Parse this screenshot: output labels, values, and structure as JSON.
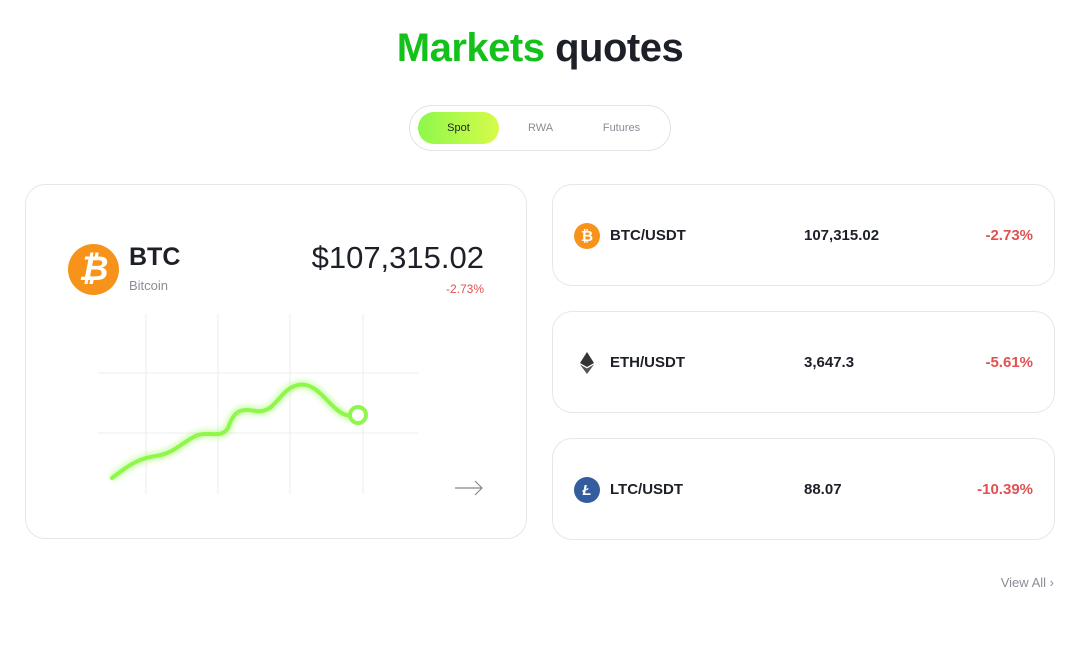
{
  "header": {
    "title_accent": "Markets",
    "title_rest": "quotes"
  },
  "tabs": [
    {
      "label": "Spot",
      "active": true
    },
    {
      "label": "RWA",
      "active": false
    },
    {
      "label": "Futures",
      "active": false
    }
  ],
  "featured": {
    "symbol": "BTC",
    "name": "Bitcoin",
    "price": "$107,315.02",
    "change": "-2.73%",
    "icon": "bitcoin-icon",
    "line_color": "#8ef84a"
  },
  "quotes": [
    {
      "pair": "BTC/USDT",
      "price": "107,315.02",
      "change": "-2.73%",
      "icon": "bitcoin-icon",
      "color": "#f7931a"
    },
    {
      "pair": "ETH/USDT",
      "price": "3,647.3",
      "change": "-5.61%",
      "icon": "ethereum-icon",
      "color": "#343434"
    },
    {
      "pair": "LTC/USDT",
      "price": "88.07",
      "change": "-10.39%",
      "icon": "litecoin-icon",
      "color": "#345d9d"
    }
  ],
  "colors": {
    "accent": "#14c11a",
    "negative": "#e05252"
  },
  "footer": {
    "view_all": "View All"
  }
}
